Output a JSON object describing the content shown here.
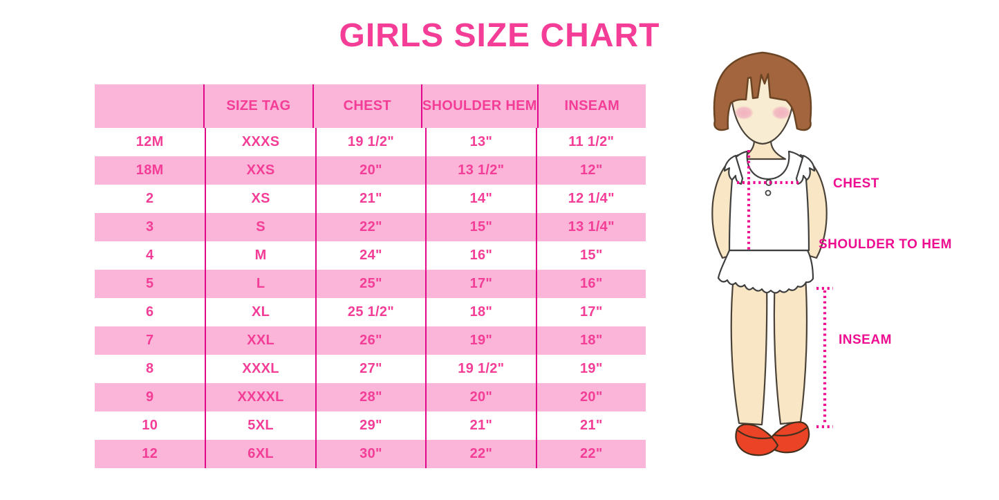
{
  "title": "GIRLS SIZE CHART",
  "table": {
    "headers": [
      "",
      "SIZE TAG",
      "CHEST",
      "SHOULDER HEM",
      "INSEAM"
    ],
    "rows": [
      [
        "12M",
        "XXXS",
        "19 1/2\"",
        "13\"",
        "11 1/2\""
      ],
      [
        "18M",
        "XXS",
        "20\"",
        "13 1/2\"",
        "12\""
      ],
      [
        "2",
        "XS",
        "21\"",
        "14\"",
        "12 1/4\""
      ],
      [
        "3",
        "S",
        "22\"",
        "15\"",
        "13 1/4\""
      ],
      [
        "4",
        "M",
        "24\"",
        "16\"",
        "15\""
      ],
      [
        "5",
        "L",
        "25\"",
        "17\"",
        "16\""
      ],
      [
        "6",
        "XL",
        "25 1/2\"",
        "18\"",
        "17\""
      ],
      [
        "7",
        "XXL",
        "26\"",
        "19\"",
        "18\""
      ],
      [
        "8",
        "XXXL",
        "27\"",
        "19 1/2\"",
        "19\""
      ],
      [
        "9",
        "XXXXL",
        "28\"",
        "20\"",
        "20\""
      ],
      [
        "10",
        "5XL",
        "29\"",
        "21\"",
        "21\""
      ],
      [
        "12",
        "6XL",
        "30\"",
        "22\"",
        "22\""
      ]
    ]
  },
  "figure": {
    "labels": {
      "chest": "CHEST",
      "shoulder_to_hem": "SHOULDER TO HEM",
      "inseam": "INSEAM"
    }
  },
  "chart_data": {
    "type": "table",
    "title": "GIRLS SIZE CHART",
    "columns": [
      "",
      "SIZE TAG",
      "CHEST",
      "SHOULDER HEM",
      "INSEAM"
    ],
    "rows": [
      [
        "12M",
        "XXXS",
        "19 1/2\"",
        "13\"",
        "11 1/2\""
      ],
      [
        "18M",
        "XXS",
        "20\"",
        "13 1/2\"",
        "12\""
      ],
      [
        "2",
        "XS",
        "21\"",
        "14\"",
        "12 1/4\""
      ],
      [
        "3",
        "S",
        "22\"",
        "15\"",
        "13 1/4\""
      ],
      [
        "4",
        "M",
        "24\"",
        "16\"",
        "15\""
      ],
      [
        "5",
        "L",
        "25\"",
        "17\"",
        "16\""
      ],
      [
        "6",
        "XL",
        "25 1/2\"",
        "18\"",
        "17\""
      ],
      [
        "7",
        "XXL",
        "26\"",
        "19\"",
        "18\""
      ],
      [
        "8",
        "XXXL",
        "27\"",
        "19 1/2\"",
        "19\""
      ],
      [
        "9",
        "XXXXL",
        "28\"",
        "20\"",
        "20\""
      ],
      [
        "10",
        "5XL",
        "29\"",
        "21\"",
        "21\""
      ],
      [
        "12",
        "6XL",
        "30\"",
        "22\"",
        "22\""
      ]
    ]
  },
  "colors": {
    "title_pink": "#F33D96",
    "row_pink": "#FAB5D8",
    "divider_pink": "#E0078A",
    "cell_text_pink": "#F33D96",
    "measure_magenta": "#EE0D90",
    "hair_brown": "#A2653E",
    "hair_outline": "#6B4423",
    "skin": "#F8E6C4",
    "skin_outline": "#4A4238",
    "clothing_white": "#FFFFFF",
    "clothing_outline": "#3F3F3F",
    "shoe_red": "#EB4326",
    "shoe_outline": "#45301E"
  }
}
